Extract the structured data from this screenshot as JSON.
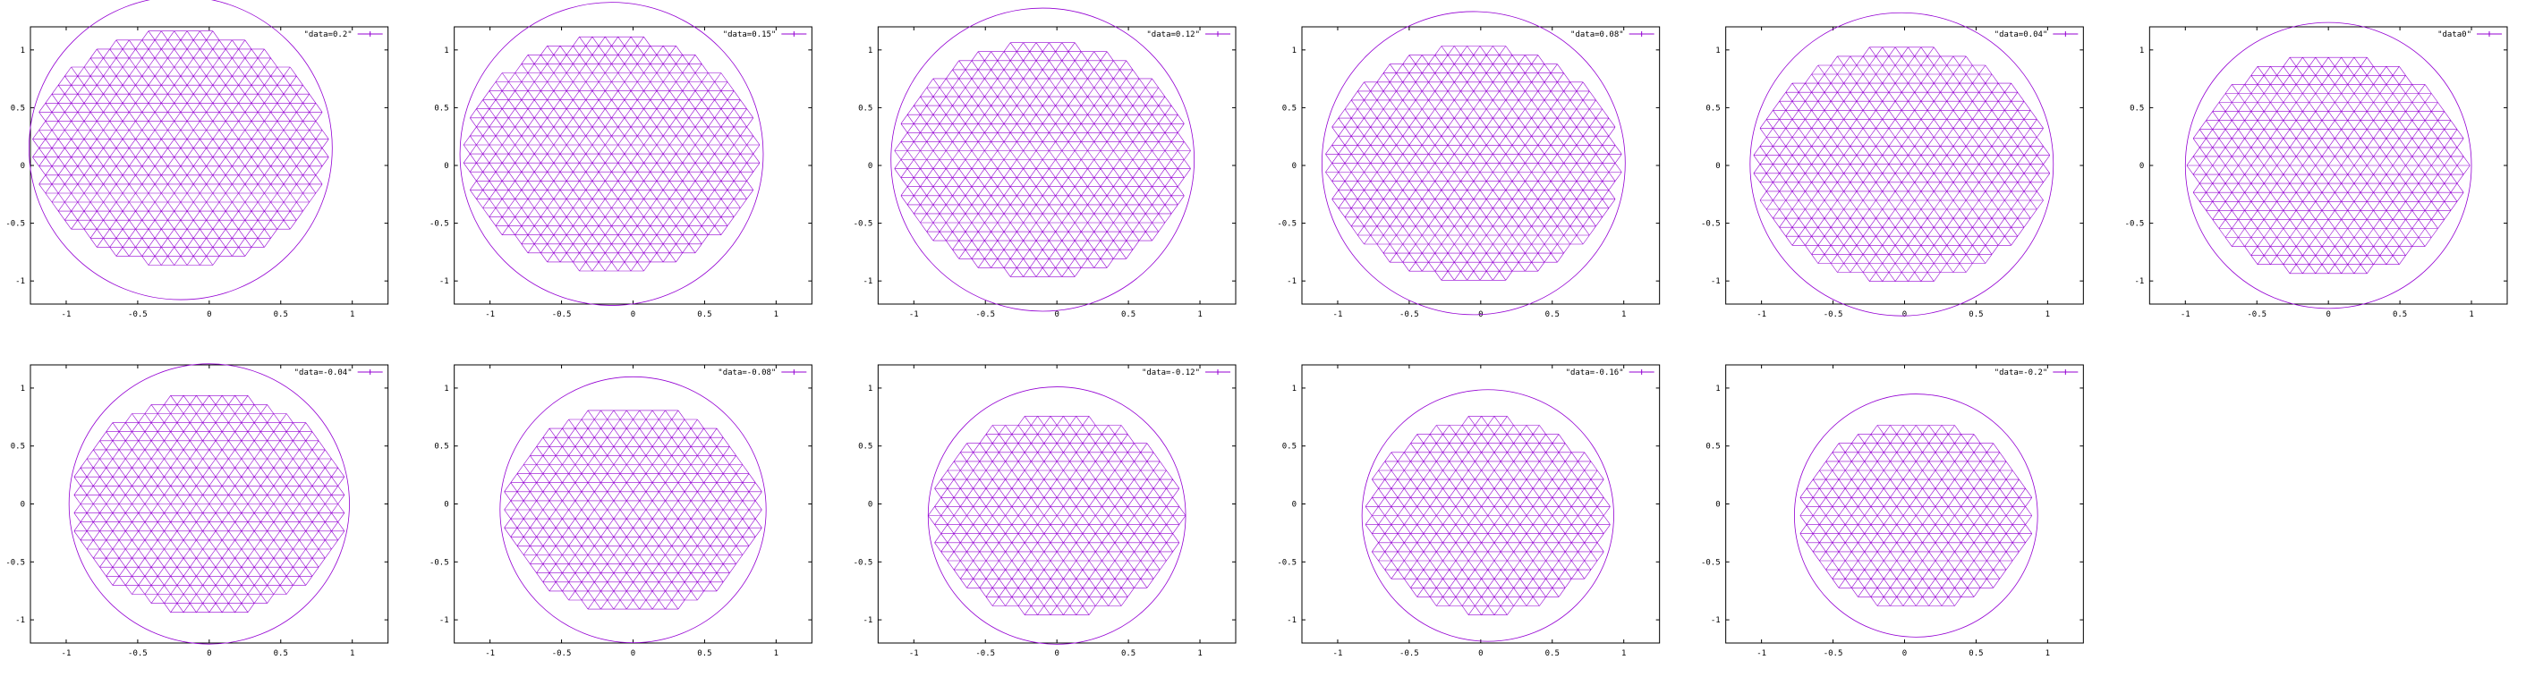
{
  "figure": {
    "layout": "2 rows x 6 columns of mesh plots",
    "mesh_color": "#9400d3"
  },
  "chart_data": [
    {
      "type": "scatter",
      "subtype": "triangulated-mesh",
      "legend": "\"data=0.2\"",
      "xlim": [
        -1.25,
        1.25
      ],
      "ylim": [
        -1.2,
        1.2
      ],
      "xticks": [
        "-1",
        "-0.5",
        "0",
        "0.5",
        "1"
      ],
      "yticks": [
        "1",
        "0.5",
        "0",
        "-0.5",
        "-1"
      ],
      "mesh": {
        "center": [
          -0.2,
          0.15
        ],
        "radius": 1.06
      }
    },
    {
      "type": "scatter",
      "subtype": "triangulated-mesh",
      "legend": "\"data=0.15\"",
      "xlim": [
        -1.25,
        1.25
      ],
      "ylim": [
        -1.2,
        1.2
      ],
      "xticks": [
        "-1",
        "-0.5",
        "0",
        "0.5",
        "1"
      ],
      "yticks": [
        "1",
        "0.5",
        "0",
        "-0.5",
        "-1"
      ],
      "mesh": {
        "center": [
          -0.15,
          0.1
        ],
        "radius": 1.06
      }
    },
    {
      "type": "scatter",
      "subtype": "triangulated-mesh",
      "legend": "\"data=0.12\"",
      "xlim": [
        -1.25,
        1.25
      ],
      "ylim": [
        -1.2,
        1.2
      ],
      "xticks": [
        "-1",
        "-0.5",
        "0",
        "0.5",
        "1"
      ],
      "yticks": [
        "1",
        "0.5",
        "0",
        "-0.5",
        "-1"
      ],
      "mesh": {
        "center": [
          -0.1,
          0.05
        ],
        "radius": 1.06
      }
    },
    {
      "type": "scatter",
      "subtype": "triangulated-mesh",
      "legend": "\"data=0.08\"",
      "xlim": [
        -1.25,
        1.25
      ],
      "ylim": [
        -1.2,
        1.2
      ],
      "xticks": [
        "-1",
        "-0.5",
        "0",
        "0.5",
        "1"
      ],
      "yticks": [
        "1",
        "0.5",
        "0",
        "-0.5",
        "-1"
      ],
      "mesh": {
        "center": [
          -0.05,
          0.02
        ],
        "radius": 1.06
      }
    },
    {
      "type": "scatter",
      "subtype": "triangulated-mesh",
      "legend": "\"data=0.04\"",
      "xlim": [
        -1.25,
        1.25
      ],
      "ylim": [
        -1.2,
        1.2
      ],
      "xticks": [
        "-1",
        "-0.5",
        "0",
        "0.5",
        "1"
      ],
      "yticks": [
        "1",
        "0.5",
        "0",
        "-0.5",
        "-1"
      ],
      "mesh": {
        "center": [
          -0.02,
          0.01
        ],
        "radius": 1.06
      }
    },
    {
      "type": "scatter",
      "subtype": "triangulated-mesh",
      "legend": "\"data0\"",
      "xlim": [
        -1.25,
        1.25
      ],
      "ylim": [
        -1.2,
        1.2
      ],
      "xticks": [
        "-1",
        "-0.5",
        "0",
        "0.5",
        "1"
      ],
      "yticks": [
        "1",
        "0.5",
        "0",
        "-0.5",
        "-1"
      ],
      "mesh": {
        "center": [
          0,
          0
        ],
        "radius": 1.0
      }
    },
    {
      "type": "scatter",
      "subtype": "triangulated-mesh",
      "legend": "\"data=-0.04\"",
      "xlim": [
        -1.25,
        1.25
      ],
      "ylim": [
        -1.2,
        1.2
      ],
      "xticks": [
        "-1",
        "-0.5",
        "0",
        "0.5",
        "1"
      ],
      "yticks": [
        "1",
        "0.5",
        "0",
        "-0.5",
        "-1"
      ],
      "mesh": {
        "center": [
          0,
          0
        ],
        "radius": 0.98
      }
    },
    {
      "type": "scatter",
      "subtype": "triangulated-mesh",
      "legend": "\"data=-0.08\"",
      "xlim": [
        -1.25,
        1.25
      ],
      "ylim": [
        -1.2,
        1.2
      ],
      "xticks": [
        "-1",
        "-0.5",
        "0",
        "0.5",
        "1"
      ],
      "yticks": [
        "1",
        "0.5",
        "0",
        "-0.5",
        "-1"
      ],
      "mesh": {
        "center": [
          0,
          -0.05
        ],
        "radius": 0.93
      }
    },
    {
      "type": "scatter",
      "subtype": "triangulated-mesh",
      "legend": "\"data=-0.12\"",
      "xlim": [
        -1.25,
        1.25
      ],
      "ylim": [
        -1.2,
        1.2
      ],
      "xticks": [
        "-1",
        "-0.5",
        "0",
        "0.5",
        "1"
      ],
      "yticks": [
        "1",
        "0.5",
        "0",
        "-0.5",
        "-1"
      ],
      "mesh": {
        "center": [
          0,
          -0.1
        ],
        "radius": 0.9
      }
    },
    {
      "type": "scatter",
      "subtype": "triangulated-mesh",
      "legend": "\"data=-0.16\"",
      "xlim": [
        -1.25,
        1.25
      ],
      "ylim": [
        -1.2,
        1.2
      ],
      "xticks": [
        "-1",
        "-0.5",
        "0",
        "0.5",
        "1"
      ],
      "yticks": [
        "1",
        "0.5",
        "0",
        "-0.5",
        "-1"
      ],
      "mesh": {
        "center": [
          0.05,
          -0.1
        ],
        "radius": 0.88
      }
    },
    {
      "type": "scatter",
      "subtype": "triangulated-mesh",
      "legend": "\"data=-0.2\"",
      "xlim": [
        -1.25,
        1.25
      ],
      "ylim": [
        -1.2,
        1.2
      ],
      "xticks": [
        "-1",
        "-0.5",
        "0",
        "0.5",
        "1"
      ],
      "yticks": [
        "1",
        "0.5",
        "0",
        "-0.5",
        "-1"
      ],
      "mesh": {
        "center": [
          0.08,
          -0.1
        ],
        "radius": 0.85
      }
    }
  ]
}
